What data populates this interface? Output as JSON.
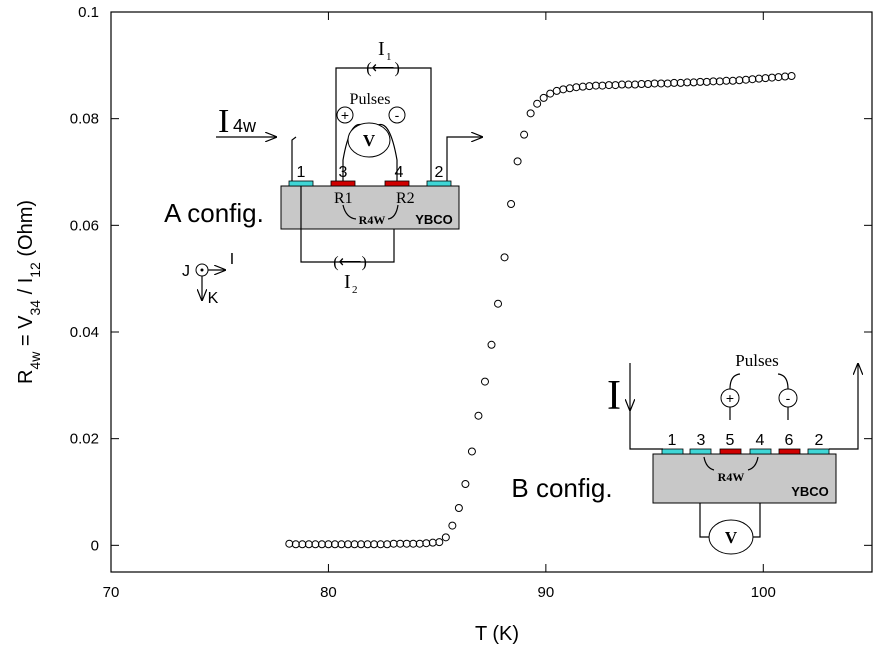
{
  "chart_data": {
    "type": "scatter",
    "x_label": "T (K)",
    "y_label": [
      {
        "text": "R"
      },
      {
        "text": "4w",
        "sub": true
      },
      {
        "text": " = V"
      },
      {
        "text": "34",
        "sub": true
      },
      {
        "text": " / I"
      },
      {
        "text": "12",
        "sub": true
      },
      {
        "text": " (Ohm)"
      }
    ],
    "x": [
      78.2,
      78.5,
      78.8,
      79.1,
      79.4,
      79.7,
      80.0,
      80.3,
      80.6,
      80.9,
      81.2,
      81.5,
      81.8,
      82.1,
      82.4,
      82.7,
      83.0,
      83.3,
      83.6,
      83.9,
      84.2,
      84.5,
      84.8,
      85.1,
      85.4,
      85.7,
      86.0,
      86.3,
      86.6,
      86.9,
      87.2,
      87.5,
      87.8,
      88.1,
      88.4,
      88.7,
      89.0,
      89.3,
      89.6,
      89.9,
      90.2,
      90.5,
      90.8,
      91.1,
      91.4,
      91.7,
      92.0,
      92.3,
      92.6,
      92.9,
      93.2,
      93.5,
      93.8,
      94.1,
      94.4,
      94.7,
      95.0,
      95.3,
      95.6,
      95.9,
      96.2,
      96.5,
      96.8,
      97.1,
      97.4,
      97.7,
      98.0,
      98.3,
      98.6,
      98.9,
      99.2,
      99.5,
      99.8,
      100.1,
      100.4,
      100.7,
      101.0,
      101.3
    ],
    "values": [
      0.0003,
      0.0002,
      0.0002,
      0.0002,
      0.0002,
      0.0002,
      0.0002,
      0.0002,
      0.0002,
      0.0002,
      0.0002,
      0.0002,
      0.0002,
      0.0002,
      0.0002,
      0.0002,
      0.0003,
      0.0003,
      0.0003,
      0.0003,
      0.0003,
      0.0004,
      0.0005,
      0.0006,
      0.0015,
      0.0037,
      0.007,
      0.0115,
      0.0176,
      0.0243,
      0.0307,
      0.0376,
      0.0453,
      0.054,
      0.064,
      0.072,
      0.077,
      0.081,
      0.0828,
      0.0839,
      0.0847,
      0.0852,
      0.0855,
      0.0857,
      0.0859,
      0.086,
      0.0861,
      0.0862,
      0.0862,
      0.0863,
      0.0863,
      0.0864,
      0.0864,
      0.0864,
      0.0865,
      0.0865,
      0.0866,
      0.0866,
      0.0866,
      0.0867,
      0.0867,
      0.0868,
      0.0868,
      0.0869,
      0.0869,
      0.087,
      0.087,
      0.0871,
      0.0871,
      0.0872,
      0.0873,
      0.0874,
      0.0875,
      0.0876,
      0.0877,
      0.0878,
      0.0879,
      0.088
    ],
    "color": "#000000",
    "xlim": [
      70,
      105
    ],
    "ylim": [
      -0.005,
      0.1
    ],
    "xticks": [
      70,
      80,
      90,
      100
    ],
    "yticks": [
      0,
      0.02,
      0.04,
      0.06,
      0.08,
      0.1
    ],
    "inset_a": {
      "config": "A config.",
      "i4w": "I",
      "i4w_sub": "4w",
      "i1": "I",
      "i1_sub": "1",
      "i2": "I",
      "i2_sub": "2",
      "pulses": "Pulses",
      "plus": "+",
      "minus": "-",
      "v": "V",
      "contacts": [
        "1",
        "3",
        "4",
        "2"
      ],
      "r1": "R1",
      "r2": "R2",
      "r4w": "R4W",
      "material": "YBCO",
      "j": "J",
      "i": "I",
      "k": "K"
    },
    "inset_b": {
      "config": "B config.",
      "i": "I",
      "pulses": "Pulses",
      "plus": "+",
      "minus": "-",
      "v": "V",
      "contacts": [
        "1",
        "3",
        "5",
        "4",
        "6",
        "2"
      ],
      "r4w": "R4W",
      "material": "YBCO"
    }
  }
}
